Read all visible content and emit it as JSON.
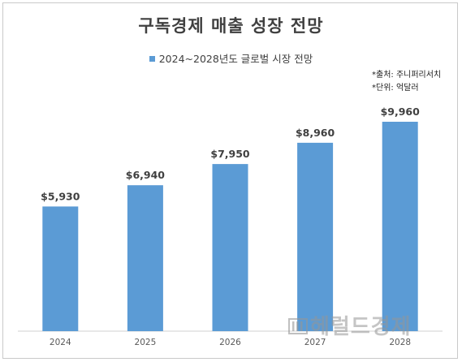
{
  "chart_data": {
    "type": "bar",
    "title": "구독경제 매출 성장 전망",
    "legend": "2024~2028년도 글로벌 시장 전망",
    "categories": [
      "2024",
      "2025",
      "2026",
      "2027",
      "2028"
    ],
    "values": [
      5930,
      6940,
      7950,
      8960,
      9960
    ],
    "value_labels": [
      "$5,930",
      "$6,940",
      "$7,950",
      "$8,960",
      "$9,960"
    ],
    "ylim": [
      0,
      10800
    ],
    "grid": false,
    "bar_color": "#5B9BD5",
    "notes": [
      "*출처: 주니퍼리서치",
      "*단위: 억달러"
    ]
  },
  "watermark": "헤럴드경제"
}
